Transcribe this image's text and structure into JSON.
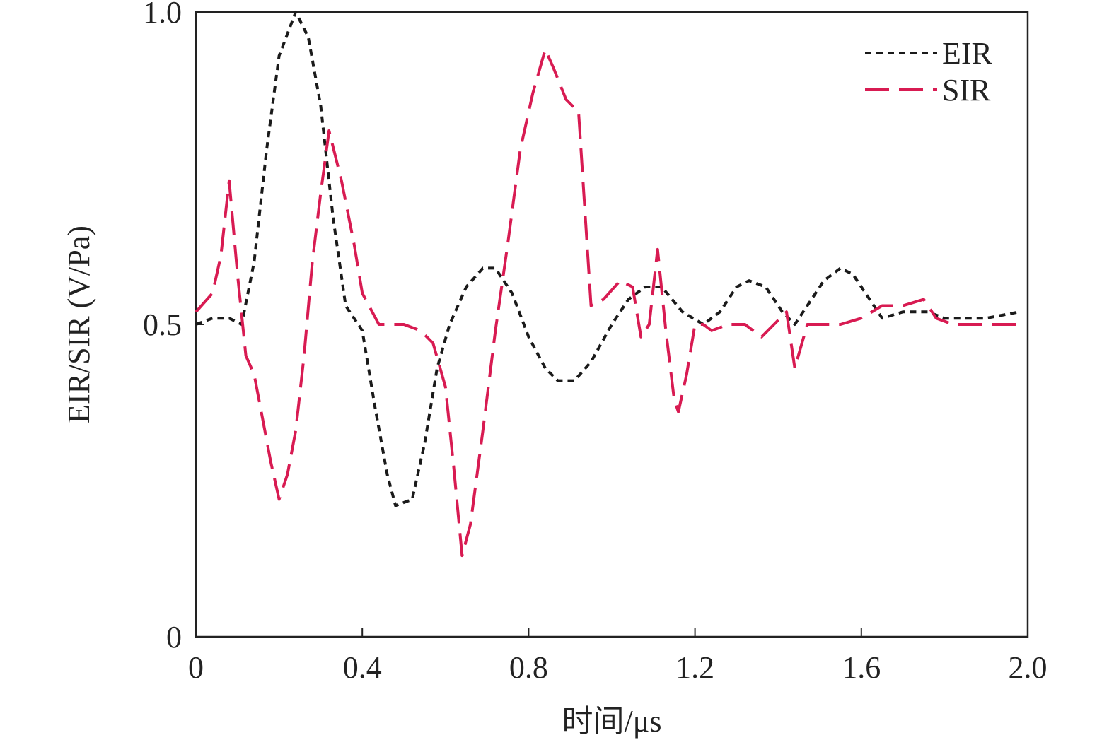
{
  "chart_data": {
    "type": "line",
    "xlabel": "时间/μs",
    "ylabel": "EIR/SIR (V/Pa)",
    "xlim": [
      0,
      2.0
    ],
    "ylim": [
      0,
      1.0
    ],
    "x_ticks": [
      {
        "value": 0,
        "label": "0"
      },
      {
        "value": 0.4,
        "label": "0.4"
      },
      {
        "value": 0.8,
        "label": "0.8"
      },
      {
        "value": 1.2,
        "label": "1.2"
      },
      {
        "value": 1.6,
        "label": "1.6"
      },
      {
        "value": 2.0,
        "label": "2.0"
      }
    ],
    "y_ticks": [
      {
        "value": 0,
        "label": "0"
      },
      {
        "value": 0.5,
        "label": "0.5"
      },
      {
        "value": 1.0,
        "label": "1.0"
      }
    ],
    "grid": false,
    "legend_position": "top-right",
    "series": [
      {
        "name": "EIR",
        "color": "#1a1a1a",
        "style": "dotted",
        "points": [
          [
            0.0,
            0.5
          ],
          [
            0.04,
            0.51
          ],
          [
            0.08,
            0.51
          ],
          [
            0.11,
            0.5
          ],
          [
            0.14,
            0.6
          ],
          [
            0.17,
            0.78
          ],
          [
            0.2,
            0.93
          ],
          [
            0.24,
            1.0
          ],
          [
            0.27,
            0.96
          ],
          [
            0.3,
            0.85
          ],
          [
            0.33,
            0.67
          ],
          [
            0.36,
            0.53
          ],
          [
            0.4,
            0.49
          ],
          [
            0.43,
            0.37
          ],
          [
            0.46,
            0.26
          ],
          [
            0.48,
            0.21
          ],
          [
            0.52,
            0.22
          ],
          [
            0.55,
            0.31
          ],
          [
            0.58,
            0.43
          ],
          [
            0.61,
            0.5
          ],
          [
            0.65,
            0.56
          ],
          [
            0.69,
            0.59
          ],
          [
            0.72,
            0.59
          ],
          [
            0.76,
            0.55
          ],
          [
            0.8,
            0.48
          ],
          [
            0.84,
            0.43
          ],
          [
            0.87,
            0.41
          ],
          [
            0.91,
            0.41
          ],
          [
            0.95,
            0.44
          ],
          [
            1.0,
            0.5
          ],
          [
            1.04,
            0.54
          ],
          [
            1.08,
            0.56
          ],
          [
            1.12,
            0.56
          ],
          [
            1.17,
            0.52
          ],
          [
            1.22,
            0.5
          ],
          [
            1.26,
            0.52
          ],
          [
            1.3,
            0.56
          ],
          [
            1.33,
            0.57
          ],
          [
            1.37,
            0.56
          ],
          [
            1.41,
            0.52
          ],
          [
            1.44,
            0.5
          ],
          [
            1.47,
            0.53
          ],
          [
            1.51,
            0.57
          ],
          [
            1.55,
            0.59
          ],
          [
            1.58,
            0.58
          ],
          [
            1.62,
            0.54
          ],
          [
            1.65,
            0.51
          ],
          [
            1.7,
            0.52
          ],
          [
            1.76,
            0.52
          ],
          [
            1.8,
            0.51
          ],
          [
            1.9,
            0.51
          ],
          [
            1.98,
            0.52
          ]
        ]
      },
      {
        "name": "SIR",
        "color": "#d81b52",
        "style": "dashed",
        "points": [
          [
            0.0,
            0.52
          ],
          [
            0.04,
            0.55
          ],
          [
            0.06,
            0.61
          ],
          [
            0.08,
            0.73
          ],
          [
            0.1,
            0.58
          ],
          [
            0.12,
            0.45
          ],
          [
            0.14,
            0.42
          ],
          [
            0.16,
            0.35
          ],
          [
            0.18,
            0.28
          ],
          [
            0.2,
            0.22
          ],
          [
            0.22,
            0.26
          ],
          [
            0.24,
            0.33
          ],
          [
            0.26,
            0.45
          ],
          [
            0.28,
            0.6
          ],
          [
            0.3,
            0.71
          ],
          [
            0.32,
            0.81
          ],
          [
            0.35,
            0.73
          ],
          [
            0.38,
            0.63
          ],
          [
            0.4,
            0.55
          ],
          [
            0.44,
            0.5
          ],
          [
            0.48,
            0.5
          ],
          [
            0.5,
            0.5
          ],
          [
            0.54,
            0.49
          ],
          [
            0.57,
            0.47
          ],
          [
            0.6,
            0.4
          ],
          [
            0.62,
            0.27
          ],
          [
            0.64,
            0.13
          ],
          [
            0.66,
            0.18
          ],
          [
            0.69,
            0.33
          ],
          [
            0.72,
            0.49
          ],
          [
            0.75,
            0.63
          ],
          [
            0.78,
            0.78
          ],
          [
            0.81,
            0.87
          ],
          [
            0.84,
            0.94
          ],
          [
            0.86,
            0.91
          ],
          [
            0.89,
            0.86
          ],
          [
            0.92,
            0.84
          ],
          [
            0.95,
            0.53
          ],
          [
            0.98,
            0.54
          ],
          [
            1.02,
            0.57
          ],
          [
            1.05,
            0.56
          ],
          [
            1.07,
            0.48
          ],
          [
            1.09,
            0.5
          ],
          [
            1.11,
            0.62
          ],
          [
            1.13,
            0.49
          ],
          [
            1.15,
            0.38
          ],
          [
            1.16,
            0.36
          ],
          [
            1.18,
            0.42
          ],
          [
            1.2,
            0.5
          ],
          [
            1.22,
            0.5
          ],
          [
            1.24,
            0.49
          ],
          [
            1.28,
            0.5
          ],
          [
            1.32,
            0.5
          ],
          [
            1.36,
            0.48
          ],
          [
            1.39,
            0.5
          ],
          [
            1.42,
            0.52
          ],
          [
            1.44,
            0.43
          ],
          [
            1.47,
            0.5
          ],
          [
            1.5,
            0.5
          ],
          [
            1.55,
            0.5
          ],
          [
            1.6,
            0.51
          ],
          [
            1.65,
            0.53
          ],
          [
            1.7,
            0.53
          ],
          [
            1.75,
            0.54
          ],
          [
            1.78,
            0.51
          ],
          [
            1.82,
            0.5
          ],
          [
            1.9,
            0.5
          ],
          [
            1.98,
            0.5
          ]
        ]
      }
    ]
  }
}
